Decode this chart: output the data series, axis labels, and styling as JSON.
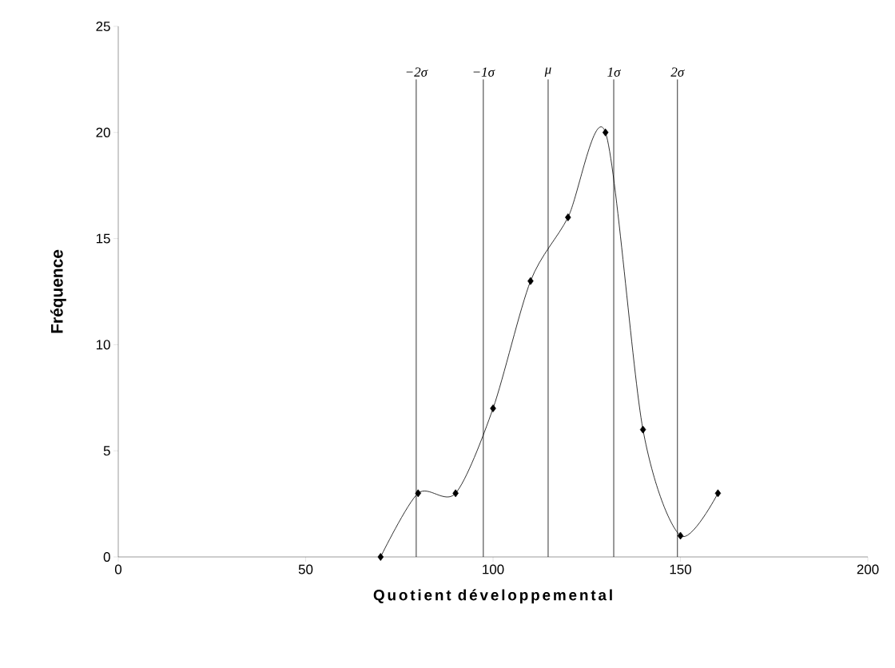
{
  "chart_data": {
    "type": "line",
    "xlabel": "Quotient développemental",
    "ylabel": "Fréquence",
    "x": [
      70,
      80,
      90,
      100,
      110,
      120,
      130,
      140,
      150,
      160
    ],
    "series": [
      {
        "color": "#000000",
        "values": [
          0,
          3,
          3,
          7,
          13,
          16,
          20,
          6,
          1,
          3
        ]
      }
    ],
    "marker": "diamond",
    "line_style": "solid",
    "grid": false,
    "xlim": [
      0,
      200
    ],
    "ylim": [
      0,
      25
    ],
    "xticks": [
      0,
      50,
      100,
      150,
      200
    ],
    "yticks": [
      0,
      5,
      10,
      15,
      20,
      25
    ],
    "ref_lines": [
      {
        "axis": "x",
        "value": 79.5,
        "label": "−2σ",
        "color": "#000000"
      },
      {
        "axis": "x",
        "value": 97.4,
        "label": "−1σ",
        "color": "#000000"
      },
      {
        "axis": "x",
        "value": 114.7,
        "label": "μ",
        "color": "#000000"
      },
      {
        "axis": "x",
        "value": 132.2,
        "label": "1σ",
        "color": "#000000"
      },
      {
        "axis": "x",
        "value": 149.2,
        "label": "2σ",
        "color": "#000000"
      }
    ]
  }
}
